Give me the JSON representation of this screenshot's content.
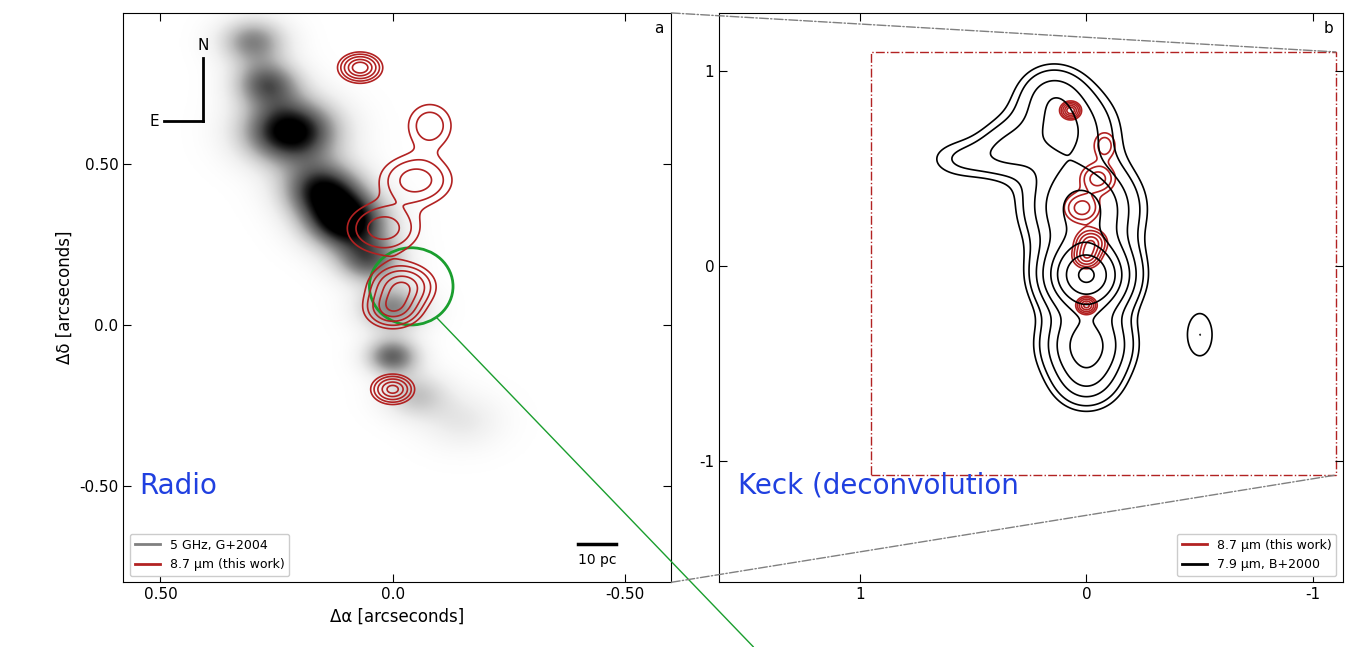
{
  "chart_data": [
    {
      "type": "contour",
      "panel": "a",
      "xlabel": "Δα [arcseconds]",
      "ylabel": "Δδ [arcseconds]",
      "xlim": [
        0.58,
        -0.6
      ],
      "ylim": [
        -0.8,
        0.97
      ],
      "xticks": [
        {
          "value": 0.5,
          "label": "0.50"
        },
        {
          "value": 0.0,
          "label": "0.0"
        },
        {
          "value": -0.5,
          "label": "-0.50"
        }
      ],
      "yticks": [
        {
          "value": -0.5,
          "label": "-0.50"
        },
        {
          "value": 0.0,
          "label": "0.0"
        },
        {
          "value": 0.5,
          "label": "0.50"
        }
      ],
      "legend": "lower left",
      "annotations": {
        "panel_label": "a",
        "north": "N",
        "east": "E",
        "band": "Radio"
      },
      "scale_bar": {
        "label": "10 pc",
        "x": [
          -0.4,
          -0.48
        ],
        "y": -0.68
      },
      "highlight": {
        "x": -0.04,
        "y": 0.12,
        "width": 0.18,
        "height": 0.24,
        "color": "#1a9e2e"
      },
      "series": [
        {
          "name": "5 GHz, G+2004",
          "type": "image",
          "color": "gray",
          "value_range": [
            0,
            0.9
          ],
          "components": [
            {
              "x": 0.3,
              "y": 0.88,
              "amp": 0.5,
              "sx": 0.05,
              "sy": 0.05
            },
            {
              "x": 0.27,
              "y": 0.75,
              "amp": 0.6,
              "sx": 0.05,
              "sy": 0.05
            },
            {
              "x": 0.22,
              "y": 0.6,
              "amp": 1.0,
              "sx": 0.07,
              "sy": 0.07
            },
            {
              "x": 0.15,
              "y": 0.42,
              "amp": 0.8,
              "sx": 0.06,
              "sy": 0.06
            },
            {
              "x": 0.1,
              "y": 0.32,
              "amp": 1.0,
              "sx": 0.06,
              "sy": 0.06
            },
            {
              "x": 0.05,
              "y": 0.2,
              "amp": 0.6,
              "sx": 0.05,
              "sy": 0.05
            },
            {
              "x": 0.0,
              "y": 0.05,
              "amp": 0.5,
              "sx": 0.05,
              "sy": 0.05
            },
            {
              "x": 0.0,
              "y": -0.1,
              "amp": 0.6,
              "sx": 0.04,
              "sy": 0.04
            },
            {
              "x": -0.05,
              "y": -0.22,
              "amp": 0.3,
              "sx": 0.05,
              "sy": 0.05
            },
            {
              "x": -0.15,
              "y": -0.3,
              "amp": 0.15,
              "sx": 0.06,
              "sy": 0.06
            }
          ]
        },
        {
          "name": "8.7 μm (this work)",
          "type": "contour",
          "color": "#b22222",
          "levels": [
            0.15,
            0.25,
            0.4,
            0.6,
            0.8
          ],
          "components": [
            {
              "x": 0.07,
              "y": 0.8,
              "amp": 1.0,
              "sx": 0.025,
              "sy": 0.025
            },
            {
              "x": -0.08,
              "y": 0.62,
              "amp": 0.35,
              "sx": 0.035,
              "sy": 0.05
            },
            {
              "x": -0.05,
              "y": 0.45,
              "amp": 0.5,
              "sx": 0.05,
              "sy": 0.05
            },
            {
              "x": 0.02,
              "y": 0.3,
              "amp": 0.5,
              "sx": 0.05,
              "sy": 0.05
            },
            {
              "x": -0.02,
              "y": 0.12,
              "amp": 0.8,
              "sx": 0.04,
              "sy": 0.04
            },
            {
              "x": 0.0,
              "y": 0.05,
              "amp": 0.7,
              "sx": 0.035,
              "sy": 0.035
            },
            {
              "x": 0.0,
              "y": -0.2,
              "amp": 0.9,
              "sx": 0.025,
              "sy": 0.025
            }
          ]
        }
      ]
    },
    {
      "type": "contour",
      "panel": "b",
      "xlim": [
        1.62,
        -1.13
      ],
      "ylim": [
        -1.62,
        1.3
      ],
      "xticks": [
        1,
        0,
        -1
      ],
      "yticks": [
        -1,
        0,
        1
      ],
      "legend": "lower right",
      "annotations": {
        "panel_label": "b",
        "band": "Keck (deconvolution"
      },
      "field_box": {
        "x": [
          0.95,
          -1.1
        ],
        "y": [
          -1.07,
          1.1
        ]
      },
      "series": [
        {
          "name": "8.7 μm (this work)",
          "type": "contour",
          "color": "#b22222",
          "levels": [
            0.15,
            0.25,
            0.4,
            0.6,
            0.8
          ],
          "components": [
            {
              "x": 0.07,
              "y": 0.8,
              "amp": 1.0,
              "sx": 0.025,
              "sy": 0.025
            },
            {
              "x": -0.08,
              "y": 0.62,
              "amp": 0.35,
              "sx": 0.035,
              "sy": 0.05
            },
            {
              "x": -0.05,
              "y": 0.45,
              "amp": 0.5,
              "sx": 0.05,
              "sy": 0.05
            },
            {
              "x": 0.02,
              "y": 0.3,
              "amp": 0.5,
              "sx": 0.05,
              "sy": 0.05
            },
            {
              "x": -0.02,
              "y": 0.12,
              "amp": 0.8,
              "sx": 0.04,
              "sy": 0.04
            },
            {
              "x": 0.0,
              "y": 0.05,
              "amp": 0.7,
              "sx": 0.035,
              "sy": 0.035
            },
            {
              "x": 0.0,
              "y": -0.2,
              "amp": 0.9,
              "sx": 0.025,
              "sy": 0.025
            }
          ]
        },
        {
          "name": "7.9 μm, B+2000",
          "type": "contour",
          "color": "black",
          "levels": [
            0.08,
            0.12,
            0.2,
            0.3,
            0.45,
            0.6,
            0.8,
            1.0
          ],
          "components": [
            {
              "x": 0.0,
              "y": -0.05,
              "amp": 1.0,
              "sx": 0.12,
              "sy": 0.12
            },
            {
              "x": 0.0,
              "y": -0.4,
              "amp": 0.5,
              "sx": 0.12,
              "sy": 0.12
            },
            {
              "x": 0.0,
              "y": -0.6,
              "amp": 0.2,
              "sx": 0.1,
              "sy": 0.1
            },
            {
              "x": 0.02,
              "y": 0.3,
              "amp": 0.5,
              "sx": 0.15,
              "sy": 0.15
            },
            {
              "x": 0.1,
              "y": 0.7,
              "amp": 0.3,
              "sx": 0.15,
              "sy": 0.15
            },
            {
              "x": 0.15,
              "y": 0.9,
              "amp": 0.15,
              "sx": 0.1,
              "sy": 0.1
            },
            {
              "x": 0.35,
              "y": 0.6,
              "amp": 0.15,
              "sx": 0.1,
              "sy": 0.1
            },
            {
              "x": 0.55,
              "y": 0.55,
              "amp": 0.12,
              "sx": 0.12,
              "sy": 0.08
            },
            {
              "x": -0.5,
              "y": -0.35,
              "amp": 0.12,
              "sx": 0.06,
              "sy": 0.12
            }
          ]
        }
      ]
    }
  ]
}
